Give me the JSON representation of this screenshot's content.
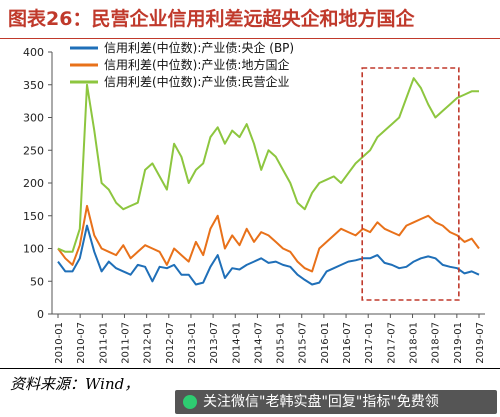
{
  "header": {
    "title": "图表26：民营企业信用利差远超央企和地方国企"
  },
  "source": {
    "text": "资料来源：Wind，"
  },
  "watermark": {
    "text": "关注微信\"老韩实盘\"回复\"指标\"免费领",
    "icon": "wechat-icon"
  },
  "colors": {
    "title": "#c0392b",
    "central": "#1f6fb8",
    "local": "#e8711a",
    "private": "#8dc63f",
    "highlight": "#c0392b"
  },
  "chart_data": {
    "type": "line",
    "ylim": [
      0,
      400
    ],
    "yticks": [
      0,
      50,
      100,
      150,
      200,
      250,
      300,
      350,
      400
    ],
    "x_ticks": [
      "2010-01",
      "2010-07",
      "2011-01",
      "2011-07",
      "2012-01",
      "2012-07",
      "2013-01",
      "2013-07",
      "2014-01",
      "2014-07",
      "2015-01",
      "2015-07",
      "2016-01",
      "2016-07",
      "2017-01",
      "2017-07",
      "2018-01",
      "2018-07",
      "2019-01",
      "2019-07"
    ],
    "legend_position": "top-left",
    "grid": false,
    "highlight_box": {
      "x_from": "2017-01",
      "x_to": "2019-01"
    },
    "series": [
      {
        "name": "信用利差(中位数):产业债:央企 (BP)",
        "color": "#1f6fb8",
        "values": [
          80,
          65,
          65,
          85,
          135,
          95,
          65,
          80,
          70,
          65,
          60,
          75,
          72,
          50,
          72,
          70,
          75,
          60,
          60,
          45,
          48,
          72,
          90,
          55,
          70,
          68,
          75,
          80,
          85,
          78,
          80,
          75,
          72,
          60,
          52,
          45,
          48,
          65,
          70,
          75,
          80,
          82,
          85,
          85,
          90,
          78,
          75,
          70,
          72,
          80,
          85,
          88,
          85,
          75,
          72,
          70,
          62,
          65,
          60
        ]
      },
      {
        "name": "信用利差(中位数):产业债:地方国企",
        "color": "#e8711a",
        "values": [
          100,
          85,
          75,
          105,
          165,
          120,
          100,
          95,
          90,
          105,
          85,
          95,
          105,
          100,
          95,
          75,
          100,
          90,
          80,
          110,
          90,
          130,
          150,
          100,
          120,
          105,
          130,
          110,
          125,
          120,
          110,
          100,
          95,
          80,
          70,
          65,
          100,
          110,
          120,
          130,
          125,
          120,
          130,
          125,
          140,
          130,
          125,
          120,
          135,
          140,
          145,
          150,
          140,
          135,
          125,
          120,
          110,
          115,
          100
        ]
      },
      {
        "name": "信用利差(中位数):产业债:民营企业",
        "color": "#8dc63f",
        "values": [
          100,
          95,
          95,
          130,
          350,
          280,
          200,
          190,
          170,
          160,
          165,
          170,
          220,
          230,
          210,
          190,
          260,
          240,
          200,
          220,
          230,
          270,
          285,
          260,
          280,
          270,
          290,
          260,
          220,
          250,
          240,
          220,
          200,
          170,
          160,
          185,
          200,
          205,
          210,
          200,
          215,
          230,
          240,
          250,
          270,
          280,
          290,
          300,
          330,
          360,
          345,
          320,
          300,
          310,
          320,
          330,
          335,
          340,
          340
        ]
      }
    ]
  }
}
